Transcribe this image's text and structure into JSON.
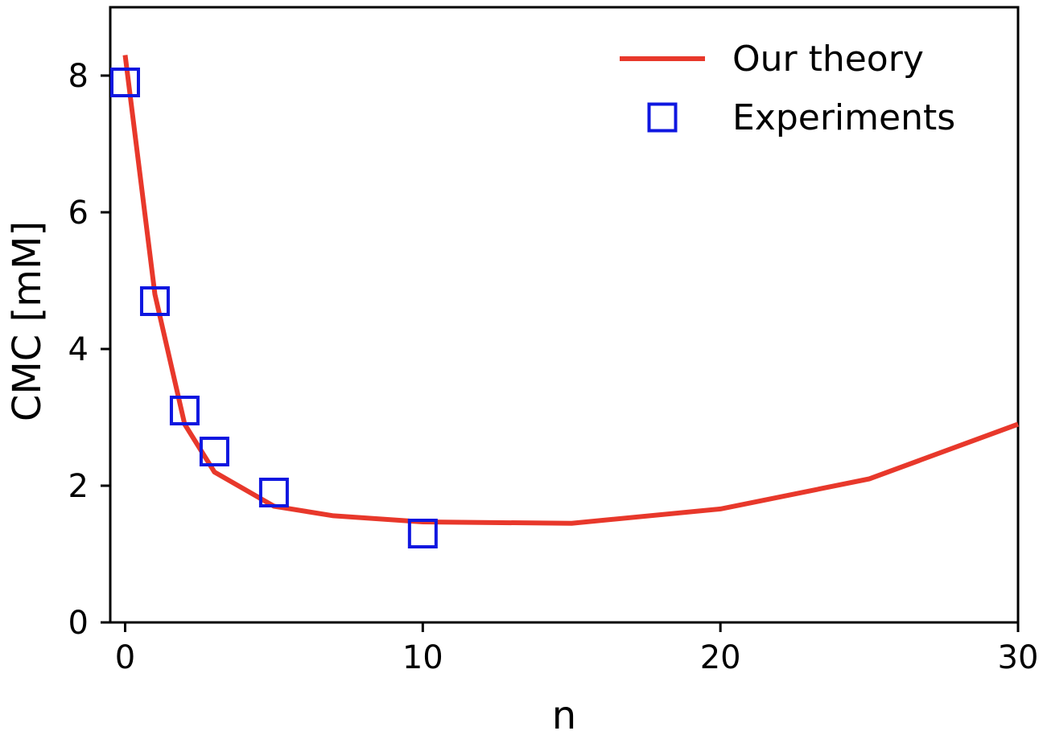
{
  "chart_data": {
    "type": "line",
    "xlabel": "n",
    "ylabel": "CMC [mM]",
    "xlim": [
      -0.5,
      30
    ],
    "ylim": [
      0,
      9
    ],
    "x_ticks": [
      "0",
      "10",
      "20",
      "30"
    ],
    "y_ticks": [
      "0",
      "2",
      "4",
      "6",
      "8"
    ],
    "grid": false,
    "legend_position": "top-right",
    "series": [
      {
        "name": "Our theory",
        "kind": "line",
        "color": "#e8382b",
        "x": [
          0,
          1,
          2,
          3,
          5,
          7,
          10,
          15,
          20,
          25,
          30
        ],
        "y": [
          8.3,
          4.8,
          2.9,
          2.2,
          1.7,
          1.56,
          1.47,
          1.45,
          1.66,
          2.1,
          2.9
        ]
      },
      {
        "name": "Experiments",
        "kind": "scatter",
        "marker": "square-open",
        "color": "#0f17e0",
        "x": [
          0,
          1,
          2,
          3,
          5,
          10
        ],
        "y": [
          7.9,
          4.7,
          3.1,
          2.5,
          1.9,
          1.3
        ]
      }
    ]
  }
}
